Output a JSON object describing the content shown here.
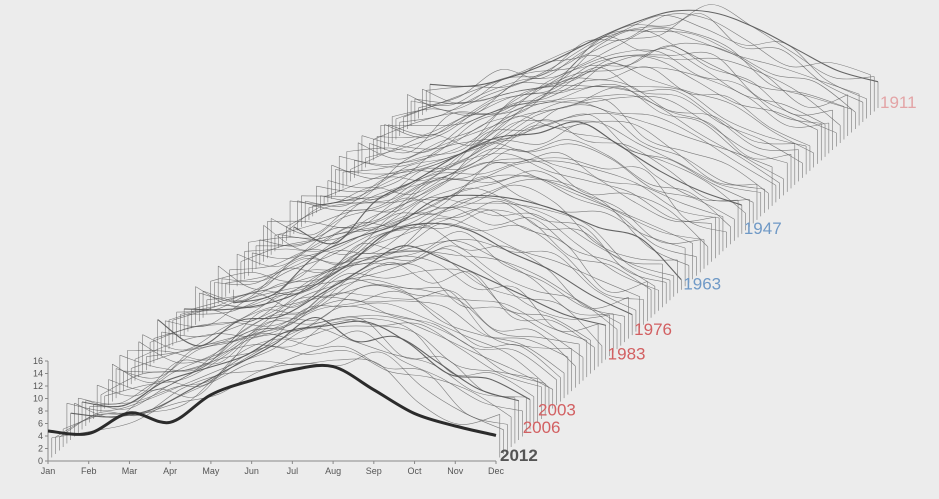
{
  "chart_data": {
    "type": "line",
    "variant": "stacked-3d-ridgeline",
    "months": [
      "Jan",
      "Feb",
      "Mar",
      "Apr",
      "May",
      "Jun",
      "Jul",
      "Aug",
      "Sep",
      "Oct",
      "Nov",
      "Dec"
    ],
    "y_ticks": [
      0,
      2,
      4,
      6,
      8,
      10,
      12,
      14,
      16
    ],
    "ylim": [
      0,
      16
    ],
    "grid": false,
    "current_year": 2012,
    "current_series": {
      "name": "2012",
      "values": [
        4.8,
        4.4,
        7.7,
        6.2,
        10.6,
        12.9,
        14.6,
        15.1,
        11.4,
        7.6,
        5.6,
        4.1
      ]
    },
    "labeled_years": [
      {
        "year": "1911",
        "values": [
          3.8,
          3.5,
          5.0,
          7.5,
          10.8,
          13.6,
          15.5,
          15.2,
          12.8,
          9.4,
          6.0,
          4.2
        ],
        "color": "#e3a4a6",
        "index": 101
      },
      {
        "year": "1947",
        "values": [
          1.1,
          -1.5,
          5.2,
          8.6,
          12.5,
          15.4,
          16.1,
          17.9,
          14.1,
          10.0,
          6.8,
          4.6
        ],
        "color": "#6f99c6",
        "index": 65
      },
      {
        "year": "1963",
        "values": [
          -2.1,
          -0.7,
          5.3,
          8.3,
          10.4,
          14.5,
          15.1,
          14.4,
          12.6,
          9.9,
          8.2,
          1.6
        ],
        "color": "#6f99c6",
        "index": 49
      },
      {
        "year": "1976",
        "values": [
          4.2,
          4.1,
          5.0,
          7.3,
          11.2,
          16.4,
          17.9,
          16.8,
          13.3,
          10.4,
          6.4,
          3.3
        ],
        "color": "#d26062",
        "index": 36
      },
      {
        "year": "1983",
        "values": [
          6.4,
          2.2,
          6.2,
          6.9,
          10.5,
          14.4,
          18.2,
          16.1,
          13.2,
          10.2,
          7.2,
          5.5
        ],
        "color": "#d26062",
        "index": 29
      },
      {
        "year": "2003",
        "values": [
          4.4,
          3.8,
          7.6,
          9.7,
          11.8,
          15.6,
          16.6,
          17.2,
          13.9,
          8.9,
          8.1,
          4.8
        ],
        "color": "#d26062",
        "index": 9
      },
      {
        "year": "2006",
        "values": [
          4.3,
          3.7,
          4.9,
          8.3,
          11.8,
          15.3,
          19.6,
          15.8,
          16.5,
          12.5,
          8.2,
          6.3
        ],
        "color": "#d26062",
        "index": 6
      },
      {
        "year": "2012",
        "values": [
          4.8,
          4.4,
          7.7,
          6.2,
          10.6,
          12.9,
          14.6,
          15.1,
          11.4,
          7.6,
          5.6,
          4.1
        ],
        "color": "#555555",
        "index": 0
      }
    ],
    "series_count": 102,
    "line_color": "#555555",
    "highlight_color": "#2b2b2b"
  }
}
